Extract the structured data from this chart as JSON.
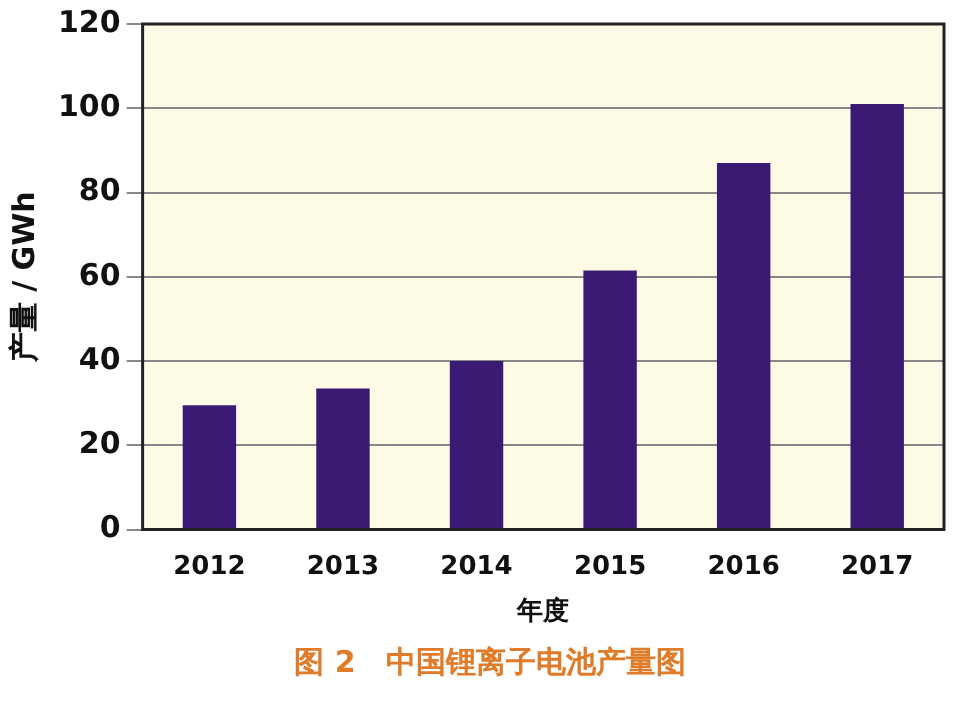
{
  "chart_data": {
    "type": "bar",
    "xlabel": "年度",
    "ylabel": "产量 / GWh",
    "annotations": [
      "图 2　中国锂离子电池产量图"
    ],
    "categories": [
      "2012",
      "2013",
      "2014",
      "2015",
      "2016",
      "2017"
    ],
    "values": [
      29.5,
      33.5,
      40,
      61.5,
      87,
      101
    ],
    "color": "#3b1a73",
    "ylim": [
      0,
      120
    ],
    "yticks": [
      0,
      20,
      40,
      60,
      80,
      100,
      120
    ],
    "grid": "y",
    "legend": false
  }
}
